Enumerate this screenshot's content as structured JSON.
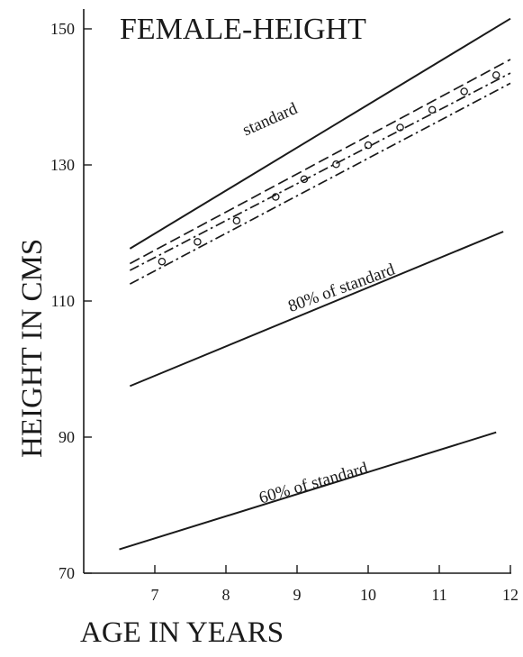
{
  "chart_data": {
    "type": "line",
    "title": "FEMALE-HEIGHT",
    "xlabel": "AGE IN YEARS",
    "ylabel": "HEIGHT IN CMS",
    "xlim": [
      6,
      12
    ],
    "ylim": [
      70,
      152
    ],
    "x_ticks": [
      7,
      8,
      9,
      10,
      11,
      12
    ],
    "y_ticks": [
      70,
      90,
      110,
      130,
      150
    ],
    "grid": false,
    "legend": "none",
    "series": [
      {
        "name": "standard",
        "style": "solid",
        "x": [
          6.65,
          12
        ],
        "y": [
          117.7,
          151.5
        ]
      },
      {
        "name": "",
        "style": "dashed-circles",
        "x": [
          6.65,
          12
        ],
        "y": [
          115.5,
          145.5
        ],
        "points": {
          "x": [
            7.1,
            7.6,
            8.15,
            8.7,
            9.1,
            9.55,
            10.0,
            10.45,
            10.9,
            11.35,
            11.8
          ],
          "y": [
            115.8,
            118.7,
            121.8,
            125.3,
            127.9,
            130.1,
            132.9,
            135.5,
            138.1,
            140.8,
            143.2
          ]
        }
      },
      {
        "name": "",
        "style": "dash-dot",
        "x": [
          6.65,
          12
        ],
        "y": [
          114.5,
          143.5
        ]
      },
      {
        "name": "",
        "style": "dash-dot",
        "x": [
          6.65,
          12
        ],
        "y": [
          112.5,
          142.0
        ]
      },
      {
        "name": "80% of standard",
        "style": "solid",
        "x": [
          6.65,
          11.9
        ],
        "y": [
          97.5,
          120.2
        ]
      },
      {
        "name": "60% of standard",
        "style": "solid",
        "x": [
          6.5,
          11.8
        ],
        "y": [
          73.5,
          90.7
        ]
      }
    ],
    "annotations": [
      {
        "text": "standard",
        "x": 8.65,
        "y": 136.0,
        "angle": -24
      },
      {
        "text": "80% of standard",
        "x": 9.65,
        "y": 111.2,
        "angle": -20
      },
      {
        "text": "60% of standard",
        "x": 9.25,
        "y": 82.5,
        "angle": -16
      }
    ]
  },
  "colors": {
    "ink": "#1a1a1a",
    "background": "#ffffff"
  }
}
